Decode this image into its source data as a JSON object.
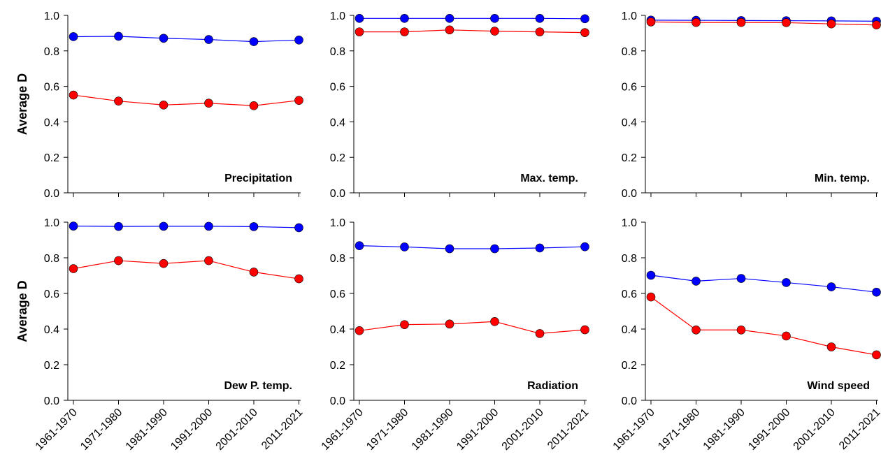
{
  "chart_data": [
    {
      "type": "line",
      "title": "Precipitation",
      "ylabel": "Average D",
      "categories": [
        "1961-1970",
        "1971-1980",
        "1981-1990",
        "1991-2000",
        "2001-2010",
        "2011-2021"
      ],
      "ylim": [
        0,
        1
      ],
      "yticks": [
        "0.0",
        "0.2",
        "0.4",
        "0.6",
        "0.8",
        "1.0"
      ],
      "series": [
        {
          "color": "#0000ff",
          "values": [
            0.88,
            0.882,
            0.871,
            0.864,
            0.852,
            0.861
          ]
        },
        {
          "color": "#ff0000",
          "values": [
            0.551,
            0.517,
            0.495,
            0.505,
            0.491,
            0.521
          ]
        }
      ]
    },
    {
      "type": "line",
      "title": "Max. temp.",
      "ylabel": "",
      "categories": [
        "1961-1970",
        "1971-1980",
        "1981-1990",
        "1991-2000",
        "2001-2010",
        "2011-2021"
      ],
      "ylim": [
        0,
        1
      ],
      "yticks": [
        "0.0",
        "0.2",
        "0.4",
        "0.6",
        "0.8",
        "1.0"
      ],
      "series": [
        {
          "color": "#0000ff",
          "values": [
            0.983,
            0.983,
            0.983,
            0.983,
            0.983,
            0.981
          ]
        },
        {
          "color": "#ff0000",
          "values": [
            0.907,
            0.907,
            0.918,
            0.911,
            0.907,
            0.903
          ]
        }
      ]
    },
    {
      "type": "line",
      "title": "Min. temp.",
      "ylabel": "",
      "categories": [
        "1961-1970",
        "1971-1980",
        "1981-1990",
        "1991-2000",
        "2001-2010",
        "2011-2021"
      ],
      "ylim": [
        0,
        1
      ],
      "yticks": [
        "0.0",
        "0.2",
        "0.4",
        "0.6",
        "0.8",
        "1.0"
      ],
      "series": [
        {
          "color": "#0000ff",
          "values": [
            0.973,
            0.972,
            0.971,
            0.97,
            0.969,
            0.967
          ]
        },
        {
          "color": "#ff0000",
          "values": [
            0.963,
            0.96,
            0.96,
            0.959,
            0.952,
            0.946
          ]
        }
      ]
    },
    {
      "type": "line",
      "title": "Dew P. temp.",
      "ylabel": "Average D",
      "categories": [
        "1961-1970",
        "1971-1980",
        "1981-1990",
        "1991-2000",
        "2001-2010",
        "2011-2021"
      ],
      "ylim": [
        0,
        1
      ],
      "yticks": [
        "0.0",
        "0.2",
        "0.4",
        "0.6",
        "0.8",
        "1.0"
      ],
      "series": [
        {
          "color": "#0000ff",
          "values": [
            0.978,
            0.976,
            0.977,
            0.977,
            0.975,
            0.969
          ]
        },
        {
          "color": "#ff0000",
          "values": [
            0.739,
            0.784,
            0.768,
            0.784,
            0.72,
            0.682
          ]
        }
      ]
    },
    {
      "type": "line",
      "title": "Radiation",
      "ylabel": "",
      "categories": [
        "1961-1970",
        "1971-1980",
        "1981-1990",
        "1991-2000",
        "2001-2010",
        "2011-2021"
      ],
      "ylim": [
        0,
        1
      ],
      "yticks": [
        "0.0",
        "0.2",
        "0.4",
        "0.6",
        "0.8",
        "1.0"
      ],
      "series": [
        {
          "color": "#0000ff",
          "values": [
            0.868,
            0.861,
            0.851,
            0.851,
            0.855,
            0.862
          ]
        },
        {
          "color": "#ff0000",
          "values": [
            0.391,
            0.425,
            0.428,
            0.442,
            0.375,
            0.396
          ]
        }
      ]
    },
    {
      "type": "line",
      "title": "Wind speed",
      "ylabel": "",
      "categories": [
        "1961-1970",
        "1971-1980",
        "1981-1990",
        "1991-2000",
        "2001-2010",
        "2011-2021"
      ],
      "ylim": [
        0,
        1
      ],
      "yticks": [
        "0.0",
        "0.2",
        "0.4",
        "0.6",
        "0.8",
        "1.0"
      ],
      "series": [
        {
          "color": "#0000ff",
          "values": [
            0.702,
            0.669,
            0.684,
            0.661,
            0.637,
            0.607
          ]
        },
        {
          "color": "#ff0000",
          "values": [
            0.58,
            0.395,
            0.395,
            0.361,
            0.3,
            0.255
          ]
        }
      ]
    }
  ]
}
